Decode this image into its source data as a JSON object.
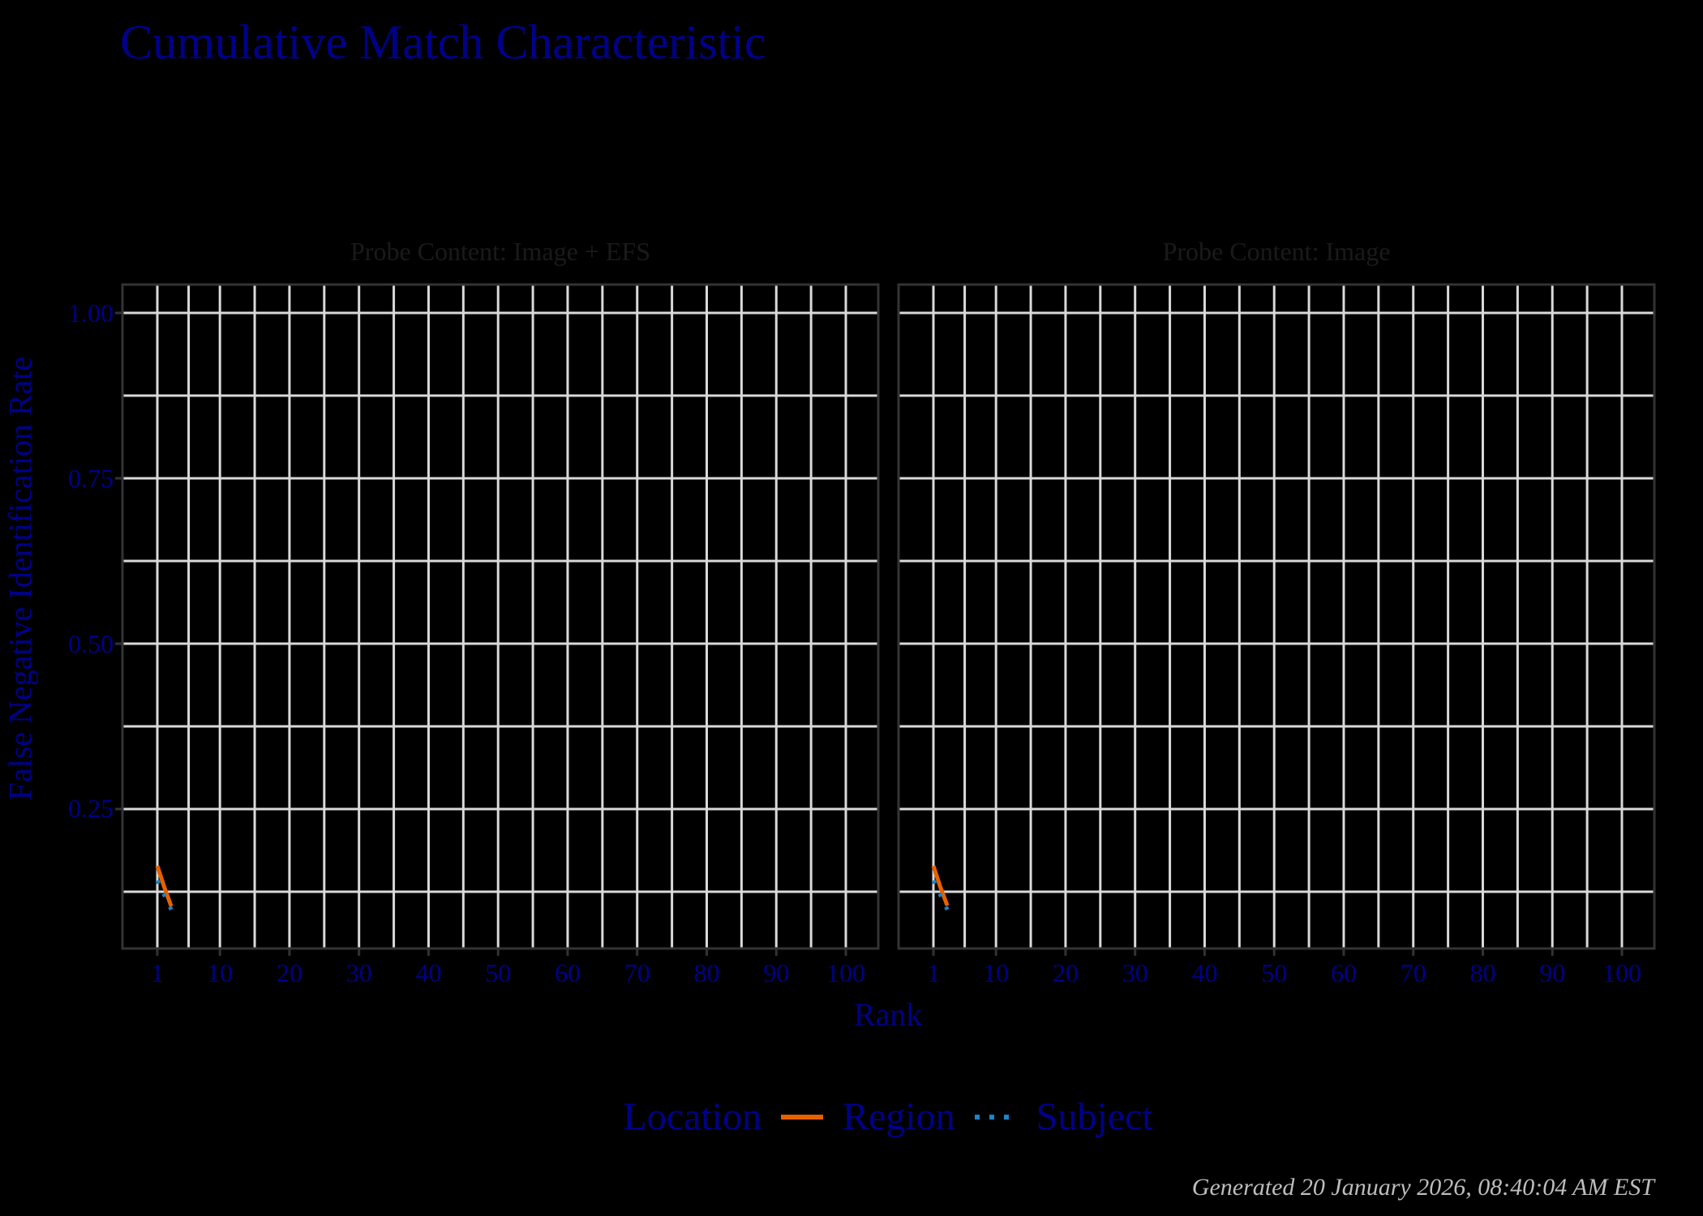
{
  "title": "Cumulative Match Characteristic",
  "footer": "Generated 20 January 2026, 08:40:04 AM EST",
  "axes": {
    "xlabel": "Rank",
    "ylabel": "False Negative Identification Rate",
    "xticks": [
      "1",
      "10",
      "20",
      "30",
      "40",
      "50",
      "60",
      "70",
      "80",
      "90",
      "100"
    ],
    "yticks": [
      "1.00",
      "0.75",
      "0.50",
      "0.25"
    ]
  },
  "panels": [
    {
      "strip": "Probe Content: Image + EFS"
    },
    {
      "strip": "Probe Content: Image"
    }
  ],
  "legend": {
    "title": "Location",
    "items": [
      {
        "label": "Region",
        "color": "#E66100",
        "style": "solid"
      },
      {
        "label": "Subject",
        "color": "#1A85C8",
        "style": "dotted"
      }
    ]
  },
  "colors": {
    "text": "#00008B",
    "grid": "#D9D9D9",
    "panel_border": "#333333",
    "background": "#000000"
  },
  "chart_data": {
    "type": "line",
    "title": "Cumulative Match Characteristic",
    "xlabel": "Rank",
    "ylabel": "False Negative Identification Rate",
    "xlim": [
      1,
      100
    ],
    "ylim": [
      0.04,
      1.04
    ],
    "x_ticks": [
      1,
      10,
      20,
      30,
      40,
      50,
      60,
      70,
      80,
      90,
      100
    ],
    "y_ticks": [
      0.25,
      0.5,
      0.75,
      1.0
    ],
    "grid": true,
    "legend_position": "bottom",
    "facets": [
      {
        "panel": "Probe Content: Image + EFS",
        "series": [
          {
            "name": "Region",
            "x": [
              1,
              2,
              3
            ],
            "values": [
              0.164,
              0.132,
              0.103
            ]
          },
          {
            "name": "Subject",
            "x": [
              1,
              2,
              3
            ],
            "values": [
              0.142,
              0.12,
              0.098
            ]
          }
        ]
      },
      {
        "panel": "Probe Content: Image",
        "series": [
          {
            "name": "Region",
            "x": [
              1,
              2,
              3
            ],
            "values": [
              0.164,
              0.132,
              0.104
            ]
          },
          {
            "name": "Subject",
            "x": [
              1,
              2,
              3
            ],
            "values": [
              0.142,
              0.12,
              0.098
            ]
          }
        ]
      }
    ]
  }
}
